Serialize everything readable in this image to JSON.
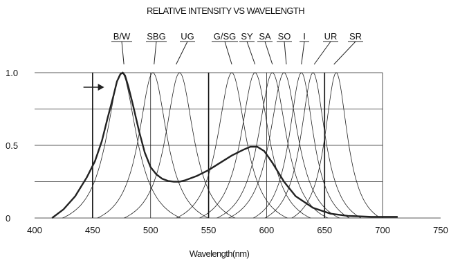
{
  "chart_data": {
    "type": "line",
    "title": "RELATIVE INTENSITY VS WAVELENGTH",
    "xlabel": "Wavelength(nm)",
    "ylabel": "",
    "xlim": [
      400,
      750
    ],
    "ylim": [
      0,
      1.0
    ],
    "x_ticks": [
      "400",
      "450",
      "500",
      "550",
      "600",
      "650",
      "700",
      "750"
    ],
    "y_ticks": [
      "0",
      "0.5",
      "1.0"
    ],
    "grid": true,
    "series": [
      {
        "name": "B/W",
        "bold": true,
        "x": [
          415,
          425,
          435,
          445,
          452,
          458,
          463,
          468,
          471,
          474,
          476,
          478,
          481,
          485,
          490,
          495,
          500,
          505,
          510,
          515,
          520,
          525,
          530,
          540,
          550,
          560,
          570,
          580,
          586,
          592,
          598,
          605,
          615,
          625,
          640,
          655,
          670,
          690,
          700,
          713
        ],
        "y": [
          0,
          0.06,
          0.15,
          0.28,
          0.39,
          0.53,
          0.69,
          0.84,
          0.94,
          0.99,
          1.0,
          0.98,
          0.9,
          0.77,
          0.6,
          0.45,
          0.35,
          0.3,
          0.27,
          0.255,
          0.25,
          0.25,
          0.26,
          0.29,
          0.33,
          0.38,
          0.43,
          0.47,
          0.49,
          0.49,
          0.46,
          0.38,
          0.25,
          0.15,
          0.07,
          0.03,
          0.015,
          0.008,
          0.008,
          0.008
        ]
      },
      {
        "name": "B",
        "bold": false,
        "peak": 475,
        "fwhm": 32
      },
      {
        "name": "SBG",
        "bold": false,
        "peak": 502,
        "fwhm": 30
      },
      {
        "name": "UG",
        "bold": false,
        "peak": 525,
        "fwhm": 30
      },
      {
        "name": "G/SG",
        "bold": false,
        "peak": 570,
        "fwhm": 30
      },
      {
        "name": "SY",
        "bold": false,
        "peak": 590,
        "fwhm": 30
      },
      {
        "name": "SA",
        "bold": false,
        "peak": 605,
        "fwhm": 30
      },
      {
        "name": "SO",
        "bold": false,
        "peak": 615,
        "fwhm": 30
      },
      {
        "name": "I",
        "bold": false,
        "peak": 630,
        "fwhm": 26
      },
      {
        "name": "UR",
        "bold": false,
        "peak": 640,
        "fwhm": 26
      },
      {
        "name": "SR",
        "bold": false,
        "peak": 660,
        "fwhm": 24
      }
    ],
    "series_labels": [
      {
        "text": "B/W",
        "points_to": 477
      },
      {
        "text": "SBG",
        "points_to": 503
      },
      {
        "text": "UG",
        "points_to": 522
      },
      {
        "text": "G/SG",
        "points_to": 570
      },
      {
        "text": "SY",
        "points_to": 590
      },
      {
        "text": "SA",
        "points_to": 605
      },
      {
        "text": "SO",
        "points_to": 617
      },
      {
        "text": "I",
        "points_to": 630
      },
      {
        "text": "UR",
        "points_to": 641
      },
      {
        "text": "SR",
        "points_to": 658
      }
    ],
    "annotations": [
      {
        "type": "arrow",
        "points_to_x": 460,
        "points_to_y": 0.9
      }
    ]
  }
}
